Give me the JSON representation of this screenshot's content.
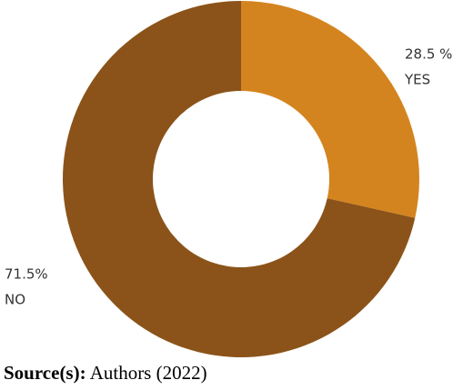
{
  "chart_data": {
    "type": "pie",
    "hole": 0.495,
    "categories": [
      "YES",
      "NO"
    ],
    "values": [
      28.5,
      71.5
    ],
    "value_labels": [
      "28.5 %",
      "71.5%"
    ],
    "colors": [
      "#d4841f",
      "#8b5319"
    ]
  },
  "source": {
    "label": "Source(s):",
    "text": "Authors (2022)"
  }
}
